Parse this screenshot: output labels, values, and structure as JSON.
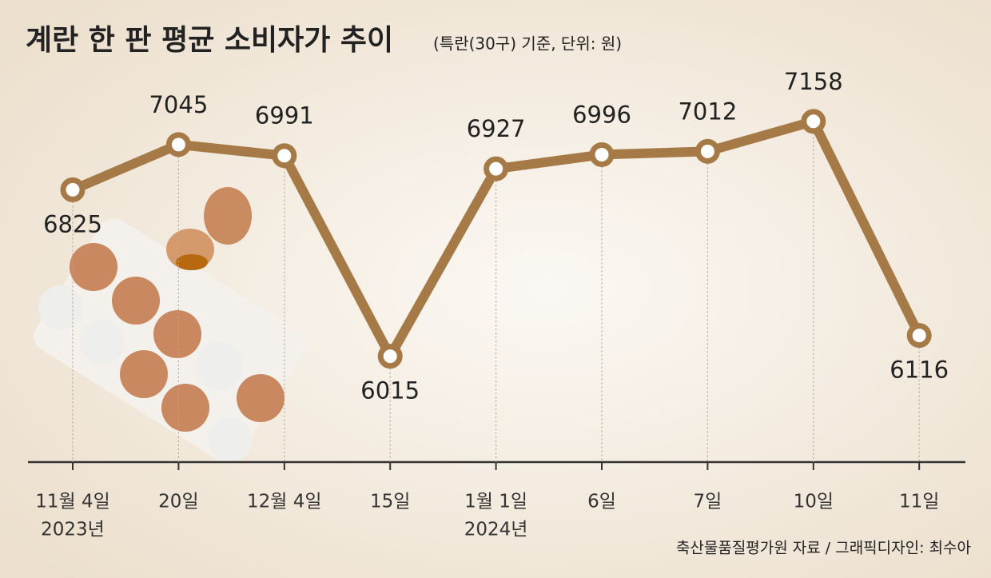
{
  "chart_data": {
    "type": "line",
    "title": "계란 한 판 평균 소비자가 추이",
    "subtitle": "(특란(30구) 기준, 단위: 원)",
    "source": "축산물품질평가원 자료 / 그래픽디자인: 최수아",
    "categories": [
      "11월 4일",
      "20일",
      "12월 4일",
      "15일",
      "1월 1일",
      "6일",
      "7일",
      "10일",
      "11일"
    ],
    "year_labels": [
      "2023년",
      null,
      null,
      null,
      "2024년",
      null,
      null,
      null,
      null
    ],
    "values": [
      6825,
      7045,
      6991,
      6015,
      6927,
      6996,
      7012,
      7158,
      6116
    ],
    "color": "#a67a46",
    "ylim": [
      5500,
      7200
    ]
  }
}
